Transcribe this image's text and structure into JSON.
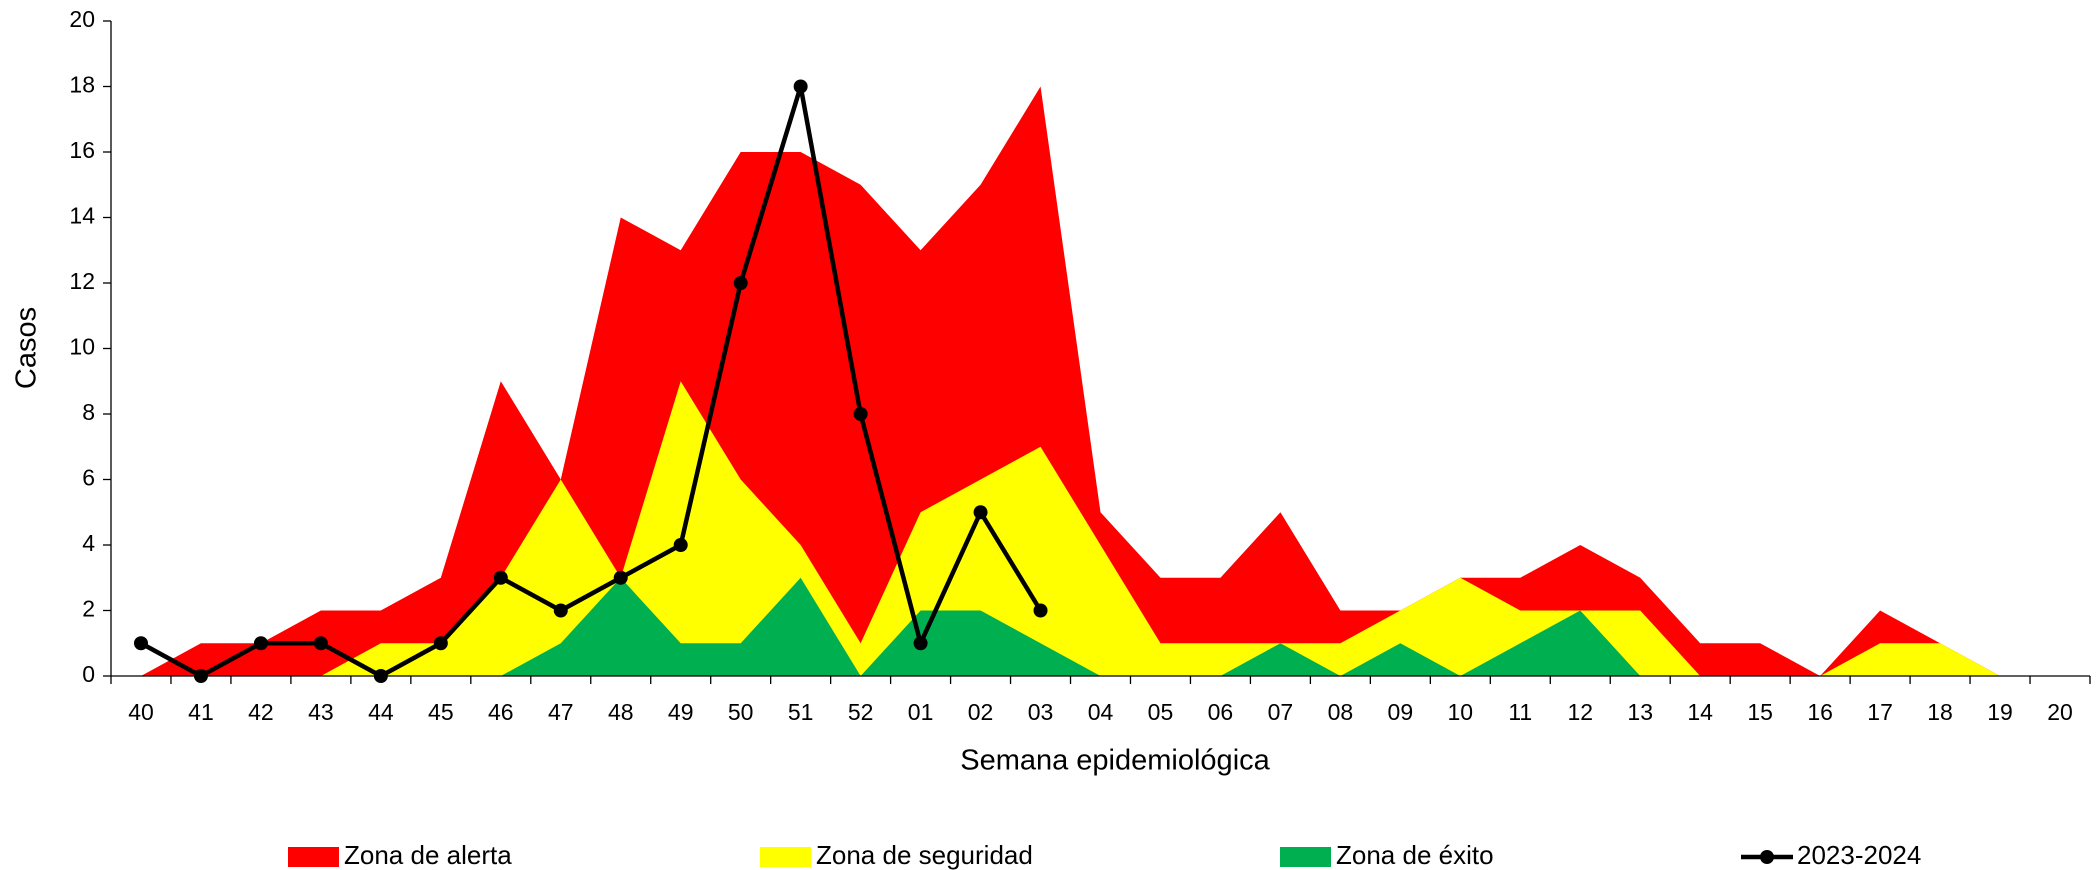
{
  "chart_data": {
    "type": "area",
    "x_label": "Semana epidemiológica",
    "y_label": "Casos",
    "categories": [
      "40",
      "41",
      "42",
      "43",
      "44",
      "45",
      "46",
      "47",
      "48",
      "49",
      "50",
      "51",
      "52",
      "01",
      "02",
      "03",
      "04",
      "05",
      "06",
      "07",
      "08",
      "09",
      "10",
      "11",
      "12",
      "13",
      "14",
      "15",
      "16",
      "17",
      "18",
      "19",
      "20"
    ],
    "series": [
      {
        "name": "Zona de alerta",
        "type": "area",
        "color": "#ff0000",
        "values": [
          0,
          1,
          1,
          2,
          2,
          3,
          9,
          6,
          14,
          13,
          16,
          16,
          15,
          13,
          15,
          18,
          5,
          3,
          3,
          5,
          2,
          2,
          3,
          3,
          4,
          3,
          1,
          1,
          0,
          2,
          1,
          0,
          0
        ]
      },
      {
        "name": "Zona de seguridad",
        "type": "area",
        "color": "#ffff00",
        "values": [
          0,
          0,
          0,
          0,
          1,
          1,
          3,
          6,
          3,
          9,
          6,
          4,
          1,
          5,
          6,
          7,
          4,
          1,
          1,
          1,
          1,
          2,
          3,
          2,
          2,
          2,
          0,
          0,
          0,
          1,
          1,
          0,
          0
        ]
      },
      {
        "name": "Zona de éxito",
        "type": "area",
        "color": "#00b050",
        "values": [
          0,
          0,
          0,
          0,
          0,
          0,
          0,
          1,
          3,
          1,
          1,
          3,
          0,
          2,
          2,
          1,
          0,
          0,
          0,
          1,
          0,
          1,
          0,
          1,
          2,
          0,
          0,
          0,
          0,
          0,
          0,
          0,
          0
        ]
      },
      {
        "name": "2023-2024",
        "type": "line",
        "color": "#000000",
        "values": [
          1,
          0,
          1,
          1,
          0,
          1,
          3,
          2,
          3,
          4,
          12,
          18,
          8,
          1,
          5,
          2,
          null,
          null,
          null,
          null,
          null,
          null,
          null,
          null,
          null,
          null,
          null,
          null,
          null,
          null,
          null,
          null,
          null
        ]
      }
    ],
    "ylim": [
      0,
      20
    ],
    "yticks": [
      0,
      2,
      4,
      6,
      8,
      10,
      12,
      14,
      16,
      18,
      20
    ],
    "legend": "bottom"
  }
}
